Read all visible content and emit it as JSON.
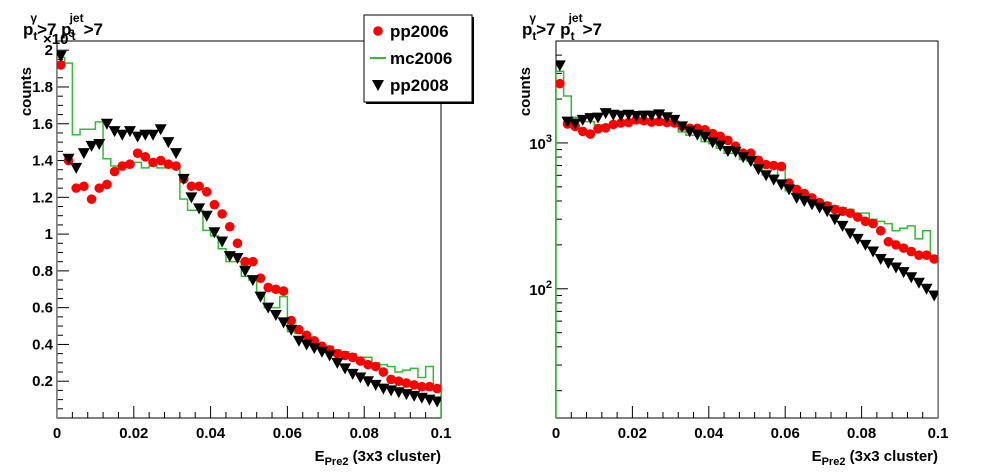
{
  "chart_data": [
    {
      "type": "scatter",
      "title_parts": [
        "p",
        "t",
        "γ",
        ">7 p",
        "t",
        "jet",
        ">7"
      ],
      "xlabel_main": "E",
      "xlabel_sub": "Pre2",
      "xlabel_rest": "(3x3 cluster)",
      "ylabel": "counts",
      "exponent_label": "×10",
      "exponent_power": "3",
      "xlim": [
        0,
        0.1
      ],
      "ylim": [
        0,
        2050
      ],
      "yscale": "linear",
      "x_ticks": [
        0,
        0.02,
        0.04,
        0.06,
        0.08,
        0.1
      ],
      "x_tick_labels": [
        "0",
        "0.02",
        "0.04",
        "0.06",
        "0.08",
        "0.1"
      ],
      "y_ticks": [
        200,
        400,
        600,
        800,
        1000,
        1200,
        1400,
        1600,
        1800,
        2000
      ],
      "y_tick_labels": [
        "0.2",
        "0.4",
        "0.6",
        "0.8",
        "1",
        "1.2",
        "1.4",
        "1.6",
        "1.8",
        "2"
      ],
      "legend": {
        "placement": "top-right",
        "entries": [
          "pp2006",
          "mc2006",
          "pp2008"
        ]
      },
      "series": [
        {
          "name": "pp2006",
          "marker": "circle",
          "color": "#ff0000",
          "x": [
            0.001,
            0.003,
            0.005,
            0.007,
            0.009,
            0.011,
            0.013,
            0.015,
            0.017,
            0.019,
            0.021,
            0.023,
            0.025,
            0.027,
            0.029,
            0.031,
            0.033,
            0.035,
            0.037,
            0.039,
            0.041,
            0.043,
            0.045,
            0.047,
            0.049,
            0.051,
            0.053,
            0.055,
            0.057,
            0.059,
            0.061,
            0.063,
            0.065,
            0.067,
            0.069,
            0.071,
            0.073,
            0.075,
            0.077,
            0.079,
            0.081,
            0.083,
            0.085,
            0.087,
            0.089,
            0.091,
            0.093,
            0.095,
            0.097,
            0.099
          ],
          "y": [
            1920,
            1400,
            1250,
            1260,
            1190,
            1250,
            1270,
            1340,
            1370,
            1380,
            1440,
            1420,
            1390,
            1400,
            1380,
            1370,
            1300,
            1260,
            1260,
            1230,
            1160,
            1110,
            1040,
            950,
            850,
            850,
            760,
            710,
            700,
            690,
            530,
            480,
            450,
            420,
            390,
            370,
            350,
            340,
            330,
            310,
            290,
            280,
            250,
            210,
            200,
            190,
            180,
            170,
            170,
            160
          ]
        },
        {
          "name": "mc2006",
          "marker": "step",
          "color": "#33bb33",
          "x": [
            0.001,
            0.003,
            0.005,
            0.007,
            0.009,
            0.011,
            0.013,
            0.015,
            0.017,
            0.019,
            0.021,
            0.023,
            0.025,
            0.027,
            0.029,
            0.031,
            0.033,
            0.035,
            0.037,
            0.039,
            0.041,
            0.043,
            0.045,
            0.047,
            0.049,
            0.051,
            0.053,
            0.055,
            0.057,
            0.059,
            0.061,
            0.063,
            0.065,
            0.067,
            0.069,
            0.071,
            0.073,
            0.075,
            0.077,
            0.079,
            0.081,
            0.083,
            0.085,
            0.087,
            0.089,
            0.091,
            0.093,
            0.095,
            0.097,
            0.099
          ],
          "y": [
            1960,
            1930,
            1540,
            1570,
            1570,
            1610,
            1410,
            1370,
            1360,
            1390,
            1390,
            1360,
            1370,
            1360,
            1360,
            1360,
            1190,
            1130,
            1130,
            1020,
            990,
            920,
            850,
            850,
            770,
            750,
            680,
            600,
            600,
            660,
            470,
            460,
            440,
            420,
            400,
            390,
            370,
            360,
            350,
            330,
            330,
            300,
            290,
            280,
            250,
            260,
            270,
            220,
            280,
            160
          ]
        },
        {
          "name": "pp2008",
          "marker": "triangle-down",
          "color": "#000000",
          "x": [
            0.001,
            0.003,
            0.005,
            0.007,
            0.009,
            0.011,
            0.013,
            0.015,
            0.017,
            0.019,
            0.021,
            0.023,
            0.025,
            0.027,
            0.029,
            0.031,
            0.033,
            0.035,
            0.037,
            0.039,
            0.041,
            0.043,
            0.045,
            0.047,
            0.049,
            0.051,
            0.053,
            0.055,
            0.057,
            0.059,
            0.061,
            0.063,
            0.065,
            0.067,
            0.069,
            0.071,
            0.073,
            0.075,
            0.077,
            0.079,
            0.081,
            0.083,
            0.085,
            0.087,
            0.089,
            0.091,
            0.093,
            0.095,
            0.097,
            0.099
          ],
          "y": [
            1970,
            1410,
            1360,
            1440,
            1480,
            1490,
            1600,
            1560,
            1540,
            1560,
            1530,
            1540,
            1540,
            1570,
            1500,
            1440,
            1300,
            1200,
            1140,
            1100,
            1010,
            960,
            880,
            870,
            800,
            750,
            660,
            600,
            560,
            520,
            480,
            420,
            400,
            380,
            360,
            340,
            300,
            270,
            240,
            220,
            200,
            180,
            160,
            150,
            140,
            130,
            120,
            110,
            100,
            90
          ]
        }
      ]
    },
    {
      "type": "scatter",
      "title_parts": [
        "p",
        "t",
        "γ",
        ">7 p",
        "t",
        "jet",
        ">7"
      ],
      "xlabel_main": "E",
      "xlabel_sub": "Pre2",
      "xlabel_rest": "(3x3 cluster)",
      "ylabel": "counts",
      "xlim": [
        0,
        0.1
      ],
      "ylim": [
        13,
        5000
      ],
      "yscale": "log",
      "x_ticks": [
        0,
        0.02,
        0.04,
        0.06,
        0.08,
        0.1
      ],
      "x_tick_labels": [
        "0",
        "0.02",
        "0.04",
        "0.06",
        "0.08",
        "0.1"
      ],
      "y_major_ticks": [
        100,
        1000
      ],
      "y_major_base": "10",
      "y_major_powers": [
        "2",
        "3"
      ],
      "series": [
        {
          "name": "pp2006",
          "marker": "circle",
          "color": "#ff0000",
          "x": [
            0.001,
            0.003,
            0.005,
            0.007,
            0.009,
            0.011,
            0.013,
            0.015,
            0.017,
            0.019,
            0.021,
            0.023,
            0.025,
            0.027,
            0.029,
            0.031,
            0.033,
            0.035,
            0.037,
            0.039,
            0.041,
            0.043,
            0.045,
            0.047,
            0.049,
            0.051,
            0.053,
            0.055,
            0.057,
            0.059,
            0.061,
            0.063,
            0.065,
            0.067,
            0.069,
            0.071,
            0.073,
            0.075,
            0.077,
            0.079,
            0.081,
            0.083,
            0.085,
            0.087,
            0.089,
            0.091,
            0.093,
            0.095,
            0.097,
            0.099
          ],
          "y": [
            2550,
            1350,
            1300,
            1200,
            1150,
            1250,
            1270,
            1340,
            1370,
            1380,
            1440,
            1420,
            1390,
            1400,
            1380,
            1370,
            1300,
            1260,
            1260,
            1230,
            1160,
            1110,
            1040,
            950,
            850,
            850,
            760,
            710,
            700,
            690,
            530,
            480,
            450,
            420,
            390,
            370,
            350,
            340,
            330,
            310,
            290,
            280,
            250,
            210,
            200,
            190,
            180,
            170,
            170,
            160
          ]
        },
        {
          "name": "mc2006",
          "marker": "step",
          "color": "#33bb33",
          "x": [
            0.001,
            0.003,
            0.005,
            0.007,
            0.009,
            0.011,
            0.013,
            0.015,
            0.017,
            0.019,
            0.021,
            0.023,
            0.025,
            0.027,
            0.029,
            0.031,
            0.033,
            0.035,
            0.037,
            0.039,
            0.041,
            0.043,
            0.045,
            0.047,
            0.049,
            0.051,
            0.053,
            0.055,
            0.057,
            0.059,
            0.061,
            0.063,
            0.065,
            0.067,
            0.069,
            0.071,
            0.073,
            0.075,
            0.077,
            0.079,
            0.081,
            0.083,
            0.085,
            0.087,
            0.089,
            0.091,
            0.093,
            0.095,
            0.097,
            0.099
          ],
          "y": [
            3100,
            2100,
            1500,
            1400,
            1400,
            1330,
            1330,
            1330,
            1360,
            1390,
            1390,
            1360,
            1370,
            1360,
            1360,
            1360,
            1190,
            1130,
            1130,
            1020,
            990,
            920,
            850,
            850,
            770,
            750,
            680,
            600,
            600,
            660,
            470,
            460,
            440,
            420,
            400,
            390,
            370,
            360,
            350,
            330,
            330,
            300,
            290,
            280,
            250,
            260,
            270,
            220,
            250,
            160
          ]
        },
        {
          "name": "pp2008",
          "marker": "triangle-down",
          "color": "#000000",
          "x": [
            0.001,
            0.003,
            0.005,
            0.007,
            0.009,
            0.011,
            0.013,
            0.015,
            0.017,
            0.019,
            0.021,
            0.023,
            0.025,
            0.027,
            0.029,
            0.031,
            0.033,
            0.035,
            0.037,
            0.039,
            0.041,
            0.043,
            0.045,
            0.047,
            0.049,
            0.051,
            0.053,
            0.055,
            0.057,
            0.059,
            0.061,
            0.063,
            0.065,
            0.067,
            0.069,
            0.071,
            0.073,
            0.075,
            0.077,
            0.079,
            0.081,
            0.083,
            0.085,
            0.087,
            0.089,
            0.091,
            0.093,
            0.095,
            0.097,
            0.099
          ],
          "y": [
            3400,
            1400,
            1360,
            1440,
            1480,
            1490,
            1600,
            1560,
            1540,
            1560,
            1530,
            1540,
            1540,
            1570,
            1500,
            1440,
            1300,
            1200,
            1140,
            1100,
            1010,
            960,
            880,
            870,
            800,
            750,
            660,
            600,
            560,
            520,
            480,
            420,
            400,
            380,
            360,
            340,
            300,
            270,
            240,
            220,
            200,
            180,
            160,
            150,
            140,
            130,
            120,
            110,
            100,
            90
          ]
        }
      ]
    }
  ]
}
